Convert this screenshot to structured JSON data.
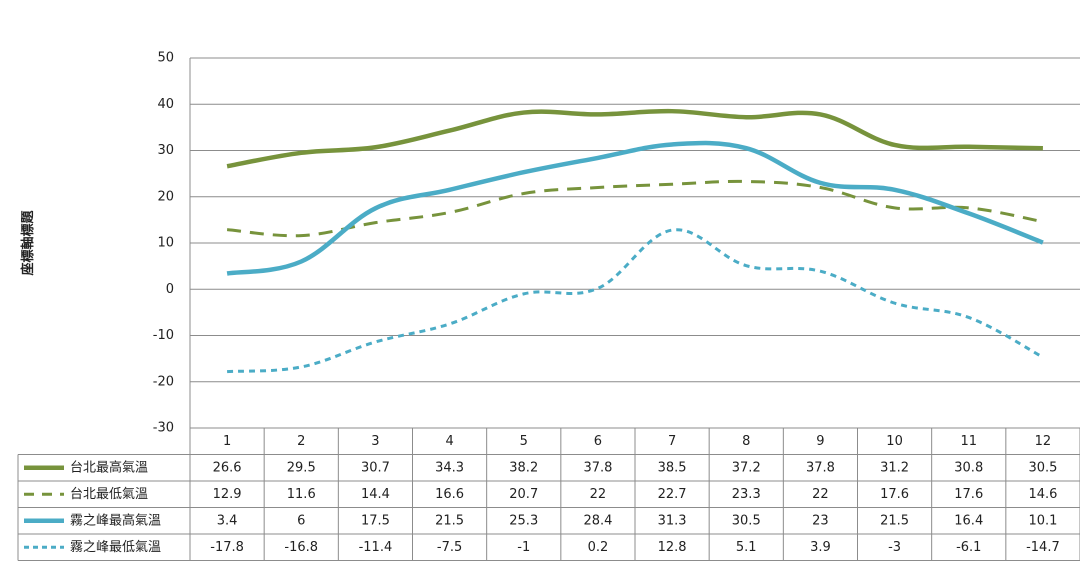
{
  "chart_data": {
    "type": "line",
    "title": "",
    "xlabel": "",
    "ylabel": "座標軸標題",
    "categories": [
      "1",
      "2",
      "3",
      "4",
      "5",
      "6",
      "7",
      "8",
      "9",
      "10",
      "11",
      "12"
    ],
    "ylim": [
      -30,
      50
    ],
    "yticks": [
      50,
      40,
      30,
      20,
      10,
      0,
      -10,
      -20,
      -30
    ],
    "grid": true,
    "legend": "data-table-left",
    "series": [
      {
        "name": "台北最高氣溫",
        "color": "#77933c",
        "dashed": false,
        "values": [
          26.6,
          29.5,
          30.7,
          34.3,
          38.2,
          37.8,
          38.5,
          37.2,
          37.8,
          31.2,
          30.8,
          30.5
        ]
      },
      {
        "name": "台北最低氣溫",
        "color": "#77933c",
        "dashed": true,
        "values": [
          12.9,
          11.6,
          14.4,
          16.6,
          20.7,
          22,
          22.7,
          23.3,
          22,
          17.6,
          17.6,
          14.6
        ]
      },
      {
        "name": "霧之峰最高氣溫",
        "color": "#4bacc6",
        "dashed": false,
        "values": [
          3.4,
          6,
          17.5,
          21.5,
          25.3,
          28.4,
          31.3,
          30.5,
          23,
          21.5,
          16.4,
          10.1
        ]
      },
      {
        "name": "霧之峰最低氣溫",
        "color": "#4bacc6",
        "dashed": true,
        "values": [
          -17.8,
          -16.8,
          -11.4,
          -7.5,
          -1,
          0.2,
          12.8,
          5.1,
          3.9,
          -3,
          -6.1,
          -14.7
        ]
      }
    ]
  }
}
